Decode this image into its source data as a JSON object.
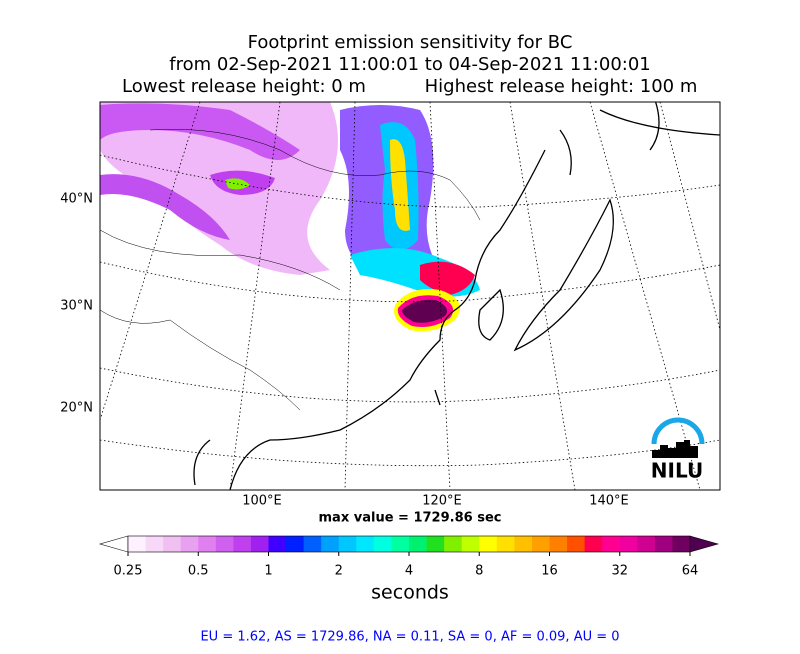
{
  "title": {
    "line1": "Footprint emission sensitivity for BC",
    "line2": "from 02-Sep-2021 11:00:01 to 04-Sep-2021 11:00:01",
    "lowest": "Lowest release height: 0 m",
    "highest": "Highest release height: 100 m"
  },
  "map": {
    "lat_labels": [
      "40°N",
      "30°N",
      "20°N"
    ],
    "lon_labels": [
      "100°E",
      "120°E",
      "140°E"
    ],
    "logo": "NILU"
  },
  "max_value": "max value = 1729.86 sec",
  "colorbar": {
    "lim": [
      0.25,
      64
    ],
    "log": true,
    "ticks": [
      0.25,
      0.5,
      1,
      2,
      4,
      8,
      16,
      32,
      64
    ],
    "label": "seconds",
    "under_color": "#ffffff",
    "over_color": "#500050",
    "colors": [
      "#fff0ff",
      "#f8d8f8",
      "#f0c0f0",
      "#e8a0f0",
      "#e080f0",
      "#d060f0",
      "#c040f0",
      "#a020f0",
      "#4000ff",
      "#0020ff",
      "#0060ff",
      "#00a0ff",
      "#00c8ff",
      "#00e8ff",
      "#00ffe0",
      "#00ffa0",
      "#00f070",
      "#20e020",
      "#80f000",
      "#c0ff00",
      "#ffff00",
      "#ffe000",
      "#ffc000",
      "#ffa000",
      "#ff8000",
      "#ff5000",
      "#ff0050",
      "#ff0090",
      "#f000a0",
      "#d00090",
      "#a00080",
      "#700060"
    ]
  },
  "footer": "EU = 1.62,  AS = 1729.86,  NA = 0.11,  SA = 0,  AF = 0.09,  AU = 0"
}
